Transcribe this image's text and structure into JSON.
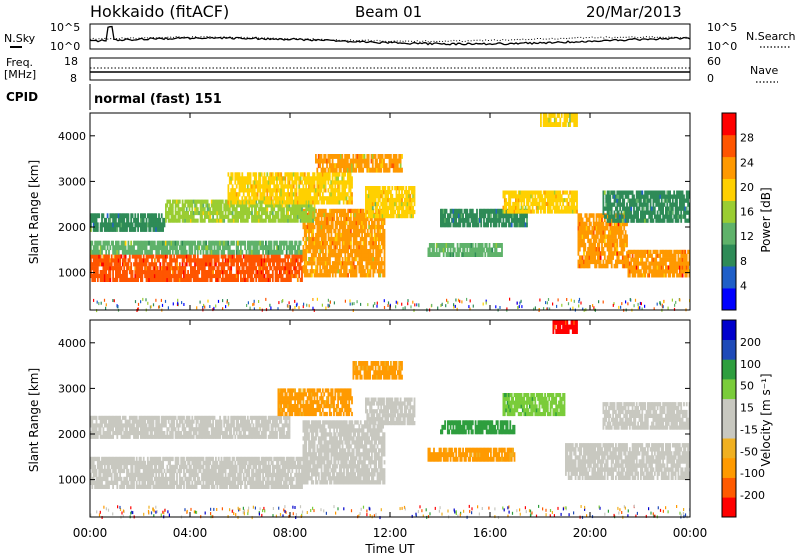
{
  "header": {
    "site": "Hokkaido (fitACF)",
    "beam": "Beam 01",
    "date": "20/Mar/2013"
  },
  "noise_panel": {
    "left_label": "N.Sky",
    "right_label": "N.Search",
    "left_ticks": [
      "10^5",
      "10^0"
    ],
    "right_ticks": [
      "10^5",
      "10^0"
    ]
  },
  "freq_panel": {
    "left_label_1": "Freq.",
    "left_label_2": "[MHz]",
    "right_label": "Nave",
    "left_ticks": [
      "18",
      "8"
    ],
    "right_ticks": [
      "60",
      "0"
    ]
  },
  "cpid_panel": {
    "label": "CPID",
    "value": "normal (fast) 151"
  },
  "colors": {
    "power_scale": [
      "#0000ff",
      "#1f5fc8",
      "#2e8b57",
      "#5fb26a",
      "#9acd32",
      "#ffd000",
      "#ff9900",
      "#ff5500",
      "#ff0000"
    ],
    "velocity_scale": [
      "#ff0000",
      "#ff5a00",
      "#ff9a00",
      "#f0b020",
      "#c8c8c0",
      "#c8c8c0",
      "#7acc3a",
      "#2e9e3e",
      "#1e4ab8",
      "#0000cc"
    ]
  },
  "chart_data": [
    {
      "type": "heatmap",
      "title": "",
      "xlabel": "",
      "ylabel": "Slant Range [km]",
      "colorbar_label": "Power [dB]",
      "y_ticks": [
        1000,
        2000,
        3000,
        4000
      ],
      "ylim": [
        180,
        4500
      ],
      "colorbar_ticks": [
        4,
        8,
        12,
        16,
        20,
        24,
        28
      ],
      "colorbar_range": [
        0,
        32
      ],
      "bands": [
        {
          "t0": 0,
          "t1": 8.5,
          "r0": 800,
          "r1": 1400,
          "v": 28
        },
        {
          "t0": 0,
          "t1": 8.5,
          "r0": 1400,
          "r1": 1700,
          "v": 14
        },
        {
          "t0": 8.5,
          "t1": 11.8,
          "r0": 900,
          "r1": 2400,
          "v": 22
        },
        {
          "t0": 0,
          "t1": 3,
          "r0": 1900,
          "r1": 2300,
          "v": 10
        },
        {
          "t0": 3,
          "t1": 9,
          "r0": 2100,
          "r1": 2600,
          "v": 16
        },
        {
          "t0": 5.5,
          "t1": 10.5,
          "r0": 2500,
          "r1": 3200,
          "v": 20
        },
        {
          "t0": 9,
          "t1": 12.5,
          "r0": 3200,
          "r1": 3600,
          "v": 22
        },
        {
          "t0": 11,
          "t1": 13,
          "r0": 2200,
          "r1": 2900,
          "v": 18
        },
        {
          "t0": 13.5,
          "t1": 16.5,
          "r0": 1350,
          "r1": 1650,
          "v": 12
        },
        {
          "t0": 14,
          "t1": 17.5,
          "r0": 2000,
          "r1": 2400,
          "v": 10
        },
        {
          "t0": 16.5,
          "t1": 19.5,
          "r0": 2300,
          "r1": 2800,
          "v": 20
        },
        {
          "t0": 18,
          "t1": 19.5,
          "r0": 4200,
          "r1": 4500,
          "v": 18
        },
        {
          "t0": 19.5,
          "t1": 21.5,
          "r0": 1100,
          "r1": 2300,
          "v": 24
        },
        {
          "t0": 21.5,
          "t1": 24,
          "r0": 900,
          "r1": 1500,
          "v": 24
        },
        {
          "t0": 20.5,
          "t1": 24,
          "r0": 2100,
          "r1": 2800,
          "v": 10
        }
      ]
    },
    {
      "type": "heatmap",
      "title": "",
      "xlabel": "Time UT",
      "ylabel": "Slant Range [km]",
      "colorbar_label": "Velocity [m s⁻¹]",
      "y_ticks": [
        1000,
        2000,
        3000,
        4000
      ],
      "ylim": [
        180,
        4500
      ],
      "colorbar_ticks": [
        -200,
        -100,
        -50,
        -15,
        15,
        50,
        100,
        200
      ],
      "x_ticks": [
        "00:00",
        "04:00",
        "08:00",
        "12:00",
        "16:00",
        "20:00",
        "00:00"
      ],
      "xlim_hours": [
        0,
        24
      ],
      "bands": [
        {
          "t0": 0,
          "t1": 8.5,
          "r0": 800,
          "r1": 1500,
          "v": 0
        },
        {
          "t0": 8.5,
          "t1": 11.8,
          "r0": 900,
          "r1": 2300,
          "v": 0
        },
        {
          "t0": 0,
          "t1": 8,
          "r0": 1900,
          "r1": 2400,
          "v": 0
        },
        {
          "t0": 7.5,
          "t1": 10.5,
          "r0": 2400,
          "r1": 3000,
          "v": -50
        },
        {
          "t0": 10.5,
          "t1": 12.5,
          "r0": 3200,
          "r1": 3600,
          "v": -50
        },
        {
          "t0": 11,
          "t1": 13,
          "r0": 2200,
          "r1": 2800,
          "v": 0
        },
        {
          "t0": 13.5,
          "t1": 17,
          "r0": 1400,
          "r1": 1700,
          "v": -50
        },
        {
          "t0": 14,
          "t1": 17,
          "r0": 2000,
          "r1": 2300,
          "v": 60
        },
        {
          "t0": 16.5,
          "t1": 19,
          "r0": 2400,
          "r1": 2900,
          "v": 50
        },
        {
          "t0": 19,
          "t1": 24,
          "r0": 1000,
          "r1": 1800,
          "v": 0
        },
        {
          "t0": 20.5,
          "t1": 24,
          "r0": 2100,
          "r1": 2700,
          "v": 0
        },
        {
          "t0": 18.5,
          "t1": 19.5,
          "r0": 4200,
          "r1": 4500,
          "v": -200
        }
      ]
    }
  ]
}
